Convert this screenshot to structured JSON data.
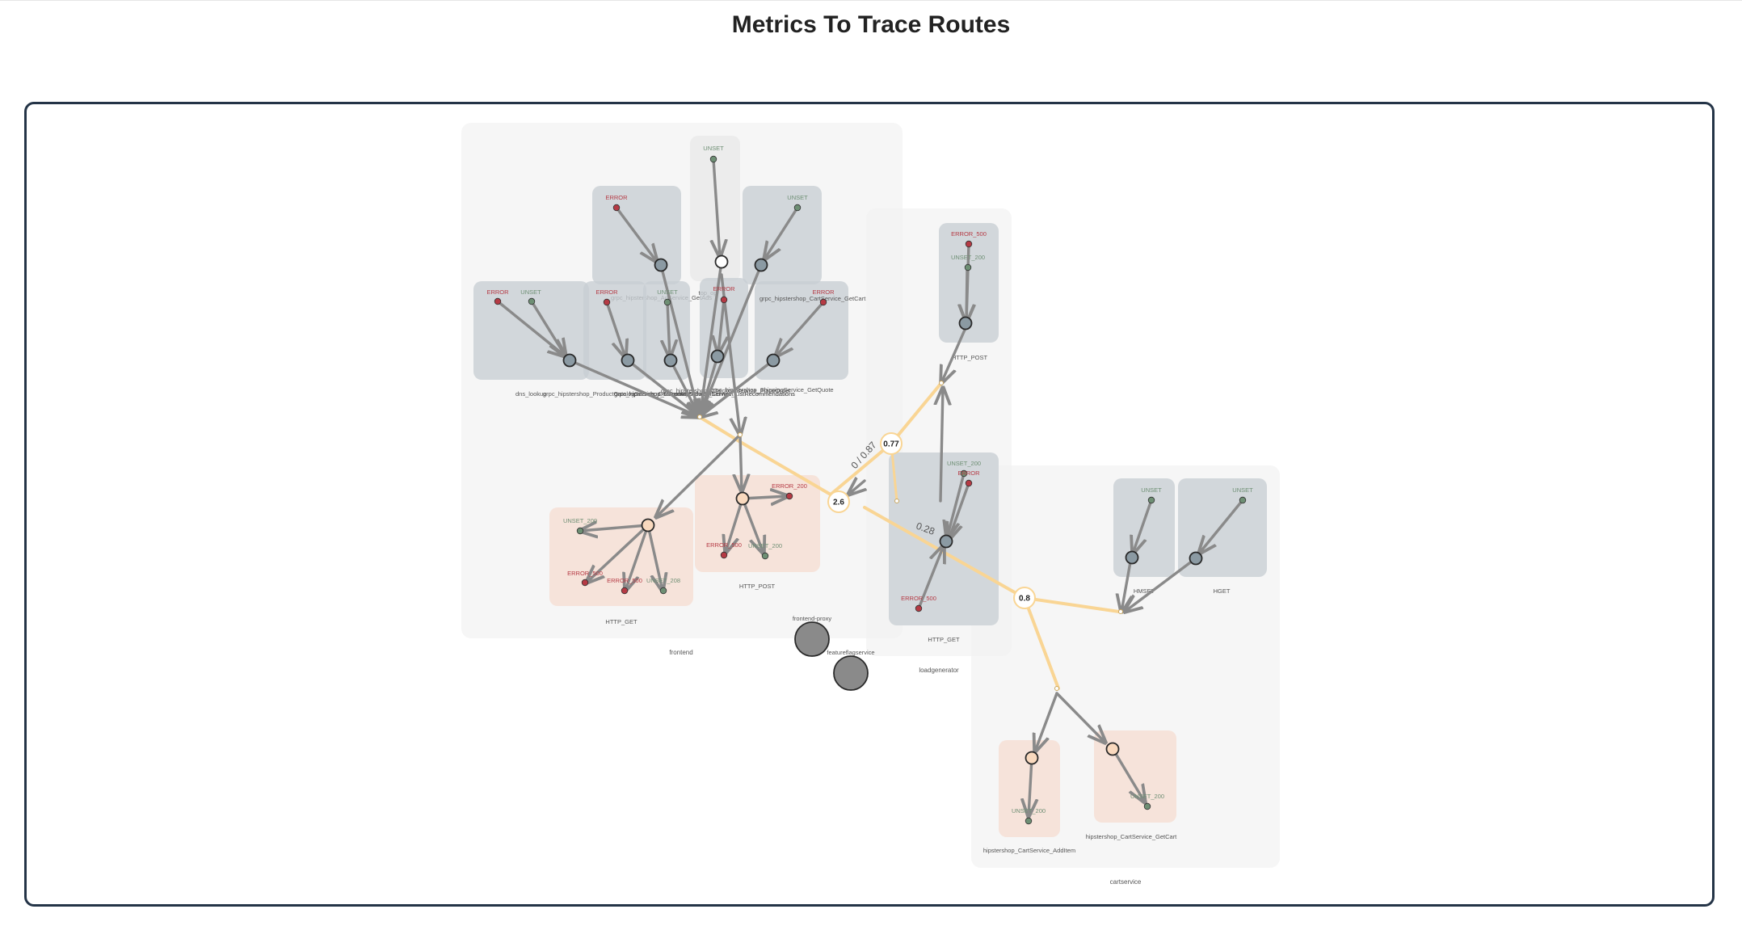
{
  "page": {
    "title": "Metrics To Trace Routes"
  },
  "colors": {
    "error": "#b53a44",
    "unset": "#6e8f74",
    "edge": "#8a8a8a",
    "route": "#f9d594",
    "span_fill_root": "#f9d9be",
    "cluster_bg": "#f1f1f1",
    "op_box": "#c8ced3",
    "http_box": "#f6ded2"
  },
  "services": [
    {
      "id": "frontend",
      "label": "frontend"
    },
    {
      "id": "loadgenerator",
      "label": "loadgenerator"
    },
    {
      "id": "cartservice",
      "label": "cartservice"
    },
    {
      "id": "frontend-proxy",
      "label": "frontend-proxy"
    },
    {
      "id": "featureflagservice",
      "label": "featureflagservice"
    }
  ],
  "operations": [
    {
      "id": "f_dns",
      "label": "dns_lookup"
    },
    {
      "id": "f_product",
      "label": "grpc_hipstershop_ProductCatalogService_GetProduct"
    },
    {
      "id": "f_currency",
      "label": "grpc_hipstershop_CurrencyService_Convert"
    },
    {
      "id": "f_ad",
      "label": "grpc_hipstershop_AdService_GetAds"
    },
    {
      "id": "f_ship",
      "label": "grpc_hipstershop_ShippingService_GetQuote"
    },
    {
      "id": "f_checkout",
      "label": "grpc_hipstershop_CheckoutService_PlaceOrder"
    },
    {
      "id": "f_cart",
      "label": "grpc_hipstershop_CartService_GetCart"
    },
    {
      "id": "f_reco",
      "label": "grpc_hipstershop_RecommendationService_ListRecommendations"
    },
    {
      "id": "f_top",
      "label": "top_op"
    },
    {
      "id": "f_httpget",
      "label": "HTTP_GET"
    },
    {
      "id": "f_httppost",
      "label": "HTTP_POST"
    },
    {
      "id": "l_httppost",
      "label": "HTTP_POST"
    },
    {
      "id": "l_httpget",
      "label": "HTTP_GET"
    },
    {
      "id": "c_hmset",
      "label": "HMSET"
    },
    {
      "id": "c_hget",
      "label": "HGET"
    },
    {
      "id": "c_additem",
      "label": "hipstershop_CartService_AddItem"
    },
    {
      "id": "c_getcart",
      "label": "hipstershop_CartService_GetCart"
    }
  ],
  "statuses": [
    {
      "op": "f_dns",
      "label": "ERROR",
      "kind": "error"
    },
    {
      "op": "f_dns",
      "label": "UNSET",
      "kind": "unset"
    },
    {
      "op": "f_product",
      "label": "ERROR",
      "kind": "error"
    },
    {
      "op": "f_currency",
      "label": "UNSET",
      "kind": "unset"
    },
    {
      "op": "f_ad",
      "label": "ERROR",
      "kind": "error"
    },
    {
      "op": "f_ship",
      "label": "UNSET",
      "kind": "unset"
    },
    {
      "op": "f_checkout",
      "label": "ERROR",
      "kind": "error"
    },
    {
      "op": "f_cart",
      "label": "ERROR",
      "kind": "error"
    },
    {
      "op": "f_top",
      "label": "UNSET",
      "kind": "unset"
    },
    {
      "op": "f_httpget",
      "label": "UNSET_200",
      "kind": "unset"
    },
    {
      "op": "f_httpget",
      "label": "ERROR_500",
      "kind": "error"
    },
    {
      "op": "f_httpget",
      "label": "ERROR_500",
      "kind": "error"
    },
    {
      "op": "f_httpget",
      "label": "UNSET_208",
      "kind": "unset"
    },
    {
      "op": "f_httppost",
      "label": "ERROR_200",
      "kind": "error"
    },
    {
      "op": "f_httppost",
      "label": "ERROR_500",
      "kind": "error"
    },
    {
      "op": "f_httppost",
      "label": "UNSET_200",
      "kind": "unset"
    },
    {
      "op": "l_httppost",
      "label": "ERROR_500",
      "kind": "error"
    },
    {
      "op": "l_httppost",
      "label": "UNSET_200",
      "kind": "unset"
    },
    {
      "op": "l_httpget",
      "label": "UNSET_200",
      "kind": "unset"
    },
    {
      "op": "l_httpget",
      "label": "ERROR",
      "kind": "error"
    },
    {
      "op": "l_httpget",
      "label": "ERROR_500",
      "kind": "error"
    },
    {
      "op": "c_hmset",
      "label": "UNSET",
      "kind": "unset"
    },
    {
      "op": "c_hget",
      "label": "UNSET",
      "kind": "unset"
    },
    {
      "op": "c_additem",
      "label": "UNSET_200",
      "kind": "unset"
    },
    {
      "op": "c_getcart",
      "label": "UNSET_200",
      "kind": "unset"
    }
  ],
  "route_metrics": [
    {
      "id": "m_077",
      "label": "0.77"
    },
    {
      "id": "m_26",
      "label": "2.6"
    },
    {
      "id": "m_08",
      "label": "0.8"
    }
  ],
  "edge_labels": [
    {
      "id": "e1",
      "label": "0 / 0.87"
    },
    {
      "id": "e2",
      "label": "0.28"
    }
  ]
}
